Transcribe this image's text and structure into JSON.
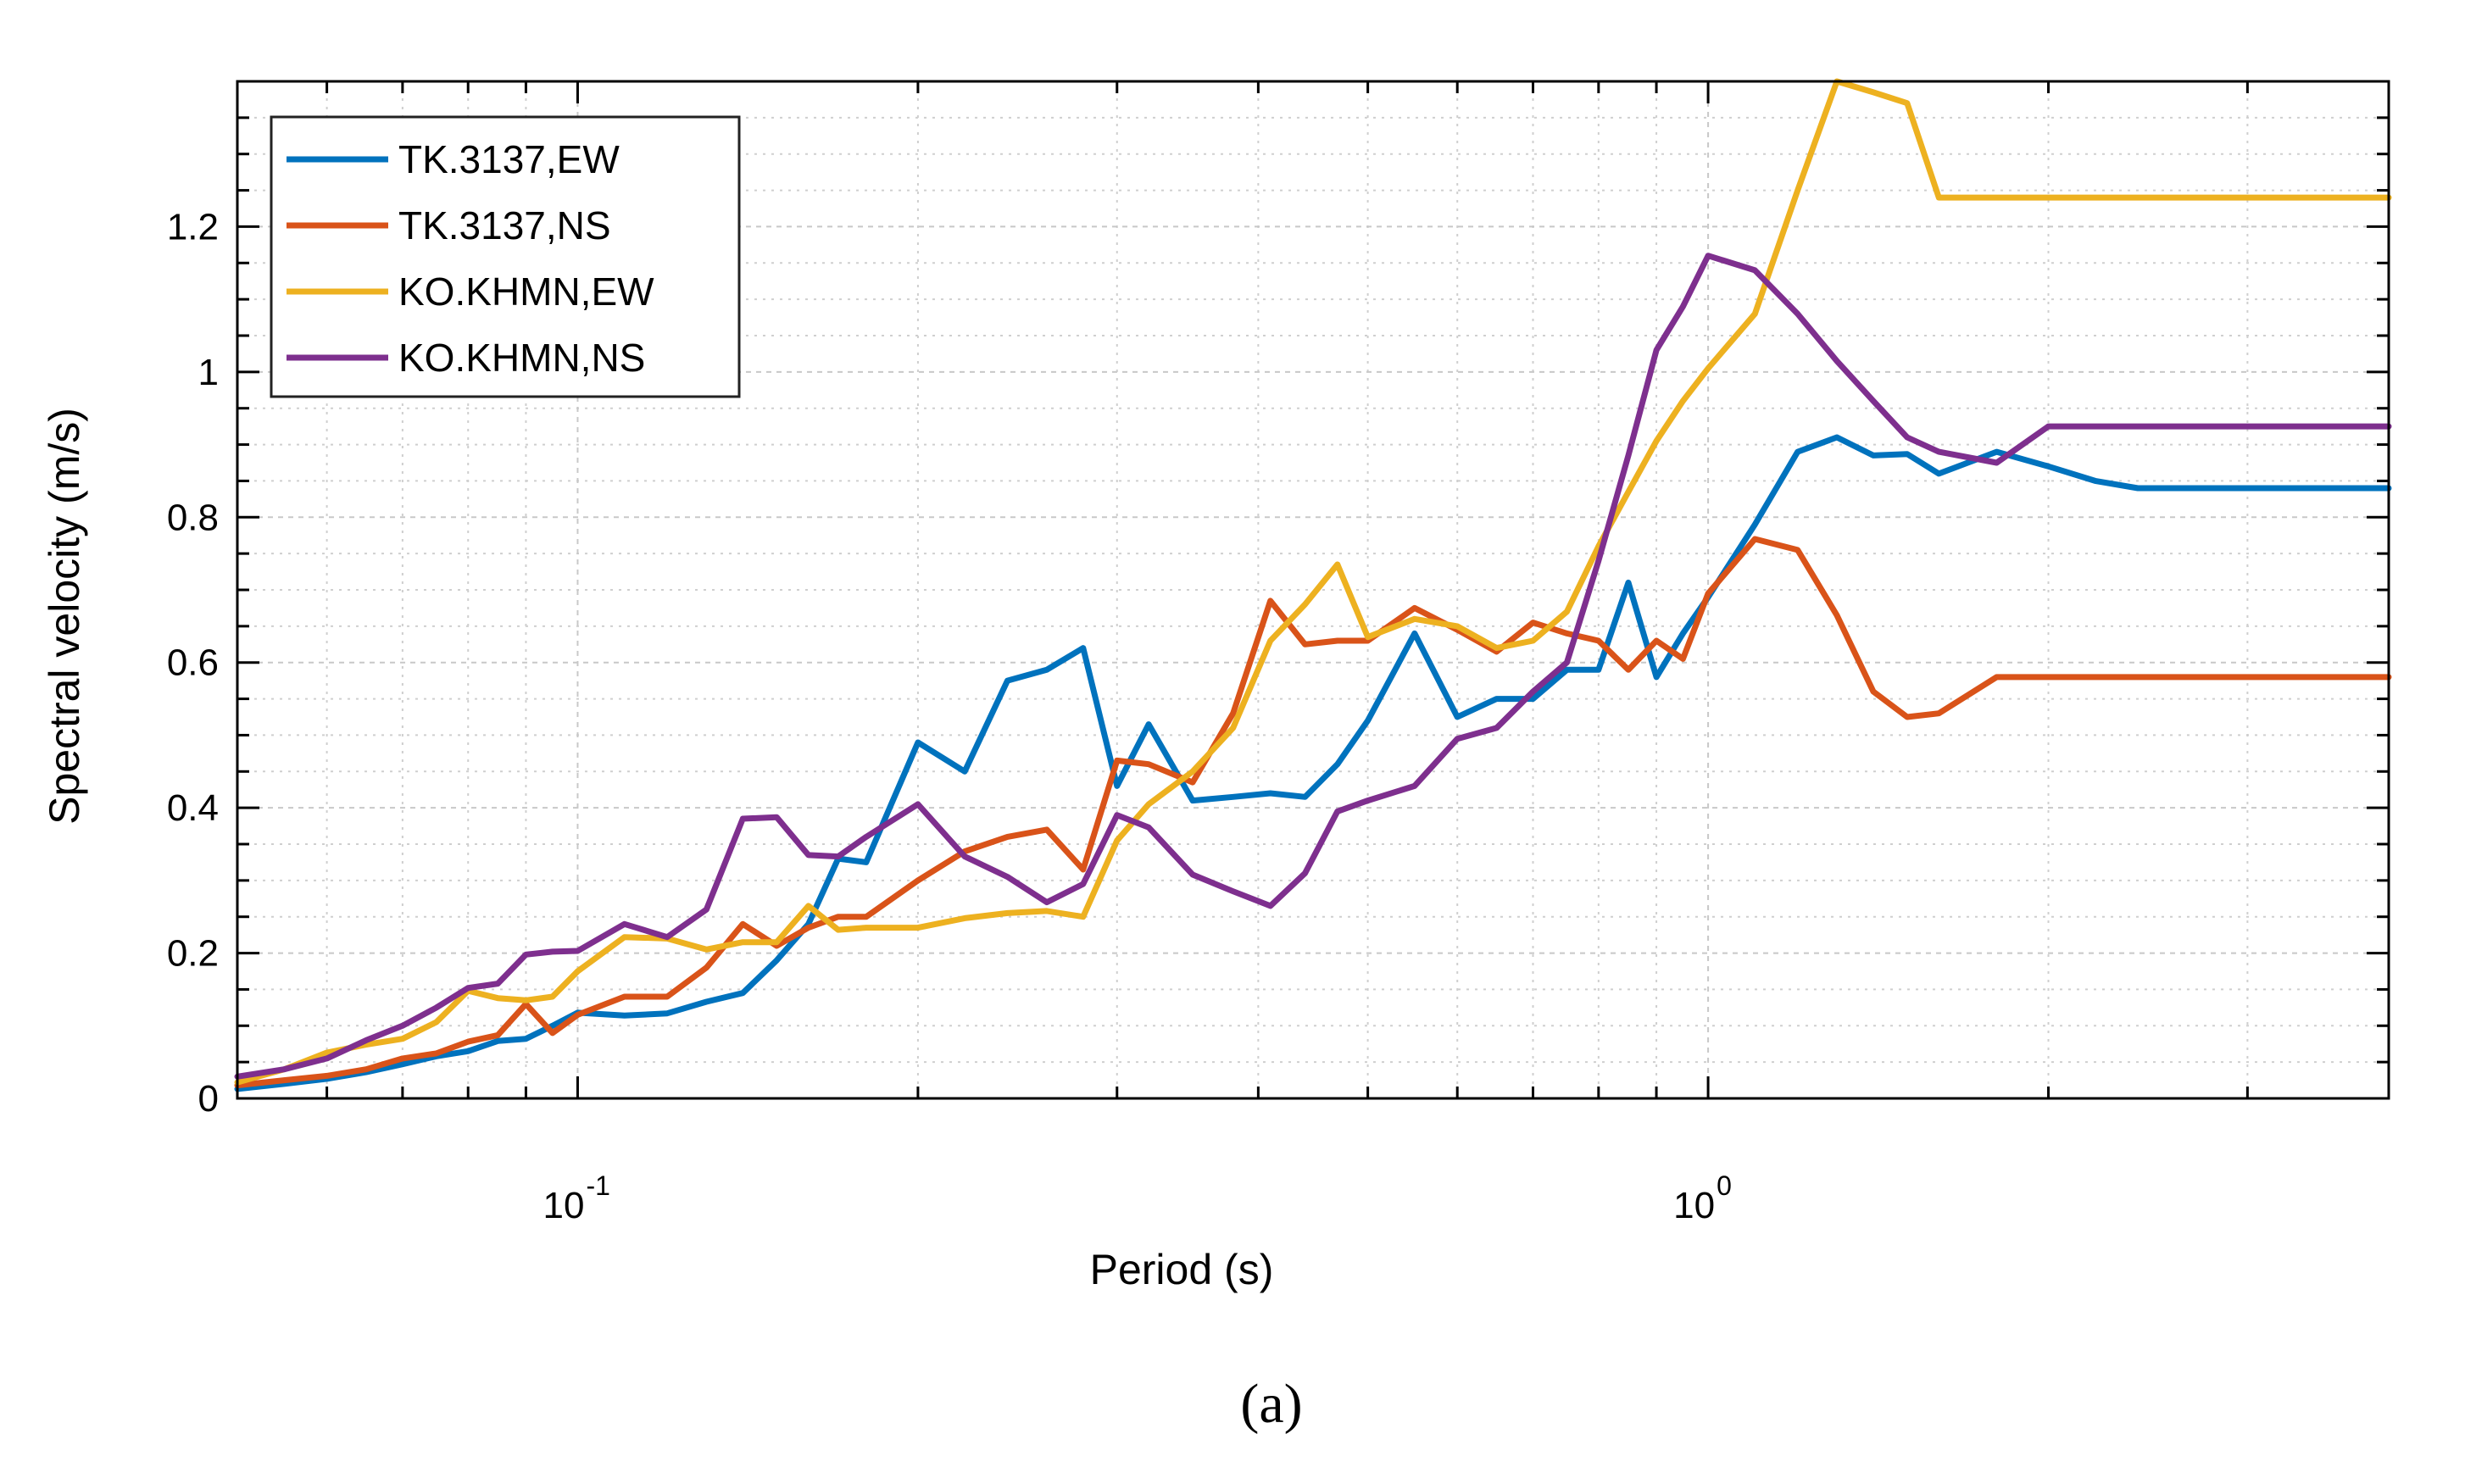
{
  "chart_data": {
    "type": "line",
    "title": "",
    "xlabel": "Period (s)",
    "ylabel": "Spectral velocity (m/s)",
    "xscale": "log",
    "xlim": [
      0.05,
      4.0
    ],
    "ylim": [
      0,
      1.4
    ],
    "grid": true,
    "legend_position": "top-left",
    "xticks": [
      0.1,
      1.0
    ],
    "xtick_labels": [
      "10",
      "10"
    ],
    "xtick_exponents": [
      "-1",
      "0"
    ],
    "yticks": [
      0,
      0.2,
      0.4,
      0.6,
      0.8,
      1,
      1.2
    ],
    "ytick_labels": [
      "0",
      "0.2",
      "0.4",
      "0.6",
      "0.8",
      "1",
      "1.2"
    ],
    "caption": "(a)",
    "series": [
      {
        "name": "TK.3137,EW",
        "color": "#0072BD",
        "x": [
          0.05,
          0.055,
          0.06,
          0.065,
          0.07,
          0.075,
          0.08,
          0.085,
          0.09,
          0.095,
          0.1,
          0.11,
          0.12,
          0.13,
          0.14,
          0.15,
          0.16,
          0.17,
          0.18,
          0.2,
          0.22,
          0.24,
          0.26,
          0.28,
          0.3,
          0.32,
          0.35,
          0.38,
          0.41,
          0.44,
          0.47,
          0.5,
          0.55,
          0.6,
          0.65,
          0.7,
          0.75,
          0.8,
          0.85,
          0.9,
          0.95,
          1.0,
          1.1,
          1.2,
          1.3,
          1.4,
          1.5,
          1.6,
          1.8,
          2.0,
          2.2,
          2.4,
          2.6,
          2.8,
          3.0,
          3.3,
          3.6,
          4.0
        ],
        "values": [
          0.013,
          0.02,
          0.027,
          0.036,
          0.047,
          0.058,
          0.065,
          0.079,
          0.082,
          0.1,
          0.118,
          0.114,
          0.117,
          0.133,
          0.145,
          0.19,
          0.24,
          0.33,
          0.325,
          0.49,
          0.45,
          0.575,
          0.59,
          0.62,
          0.43,
          0.515,
          0.41,
          0.415,
          0.42,
          0.415,
          0.46,
          0.52,
          0.64,
          0.525,
          0.55,
          0.55,
          0.59,
          0.59,
          0.71,
          0.58,
          0.64,
          0.69,
          0.79,
          0.89,
          0.91,
          0.885,
          0.887,
          0.86,
          0.89,
          0.87,
          0.85,
          0.84,
          0.84,
          0.84,
          0.84,
          0.84,
          0.84,
          0.84
        ]
      },
      {
        "name": "TK.3137,NS",
        "color": "#D95319",
        "x": [
          0.05,
          0.055,
          0.06,
          0.065,
          0.07,
          0.075,
          0.08,
          0.085,
          0.09,
          0.095,
          0.1,
          0.11,
          0.12,
          0.13,
          0.14,
          0.15,
          0.16,
          0.17,
          0.18,
          0.2,
          0.22,
          0.24,
          0.26,
          0.28,
          0.3,
          0.32,
          0.35,
          0.38,
          0.41,
          0.44,
          0.47,
          0.5,
          0.55,
          0.6,
          0.65,
          0.7,
          0.75,
          0.8,
          0.85,
          0.9,
          0.95,
          1.0,
          1.1,
          1.2,
          1.3,
          1.4,
          1.5,
          1.6,
          1.8,
          2.0,
          2.2,
          2.4,
          2.6,
          2.8,
          3.0,
          3.3,
          3.6,
          4.0
        ],
        "values": [
          0.018,
          0.025,
          0.031,
          0.04,
          0.055,
          0.062,
          0.078,
          0.087,
          0.13,
          0.09,
          0.115,
          0.14,
          0.14,
          0.18,
          0.24,
          0.21,
          0.235,
          0.25,
          0.25,
          0.3,
          0.34,
          0.36,
          0.37,
          0.315,
          0.465,
          0.46,
          0.435,
          0.53,
          0.685,
          0.625,
          0.63,
          0.63,
          0.675,
          0.645,
          0.615,
          0.655,
          0.64,
          0.63,
          0.59,
          0.63,
          0.605,
          0.695,
          0.77,
          0.755,
          0.665,
          0.56,
          0.525,
          0.53,
          0.58,
          0.58,
          0.58,
          0.58,
          0.58,
          0.58,
          0.58,
          0.58,
          0.58,
          0.58
        ]
      },
      {
        "name": "KO.KHMN,EW",
        "color": "#EDB120",
        "x": [
          0.05,
          0.055,
          0.06,
          0.065,
          0.07,
          0.075,
          0.08,
          0.085,
          0.09,
          0.095,
          0.1,
          0.11,
          0.12,
          0.13,
          0.14,
          0.15,
          0.16,
          0.17,
          0.18,
          0.2,
          0.22,
          0.24,
          0.26,
          0.28,
          0.3,
          0.32,
          0.35,
          0.38,
          0.41,
          0.44,
          0.47,
          0.5,
          0.55,
          0.6,
          0.65,
          0.7,
          0.75,
          0.8,
          0.85,
          0.9,
          0.95,
          1.0,
          1.1,
          1.2,
          1.3,
          1.4,
          1.5,
          1.6,
          1.8,
          2.0,
          2.2,
          2.4,
          2.6,
          2.8,
          3.0,
          3.3,
          3.6,
          4.0
        ],
        "values": [
          0.022,
          0.04,
          0.063,
          0.074,
          0.082,
          0.105,
          0.148,
          0.138,
          0.135,
          0.14,
          0.175,
          0.222,
          0.22,
          0.205,
          0.215,
          0.215,
          0.265,
          0.232,
          0.235,
          0.235,
          0.248,
          0.255,
          0.258,
          0.25,
          0.355,
          0.405,
          0.45,
          0.51,
          0.63,
          0.68,
          0.735,
          0.635,
          0.66,
          0.65,
          0.62,
          0.63,
          0.67,
          0.76,
          0.835,
          0.905,
          0.96,
          1.005,
          1.08,
          1.25,
          1.4,
          1.385,
          1.37,
          1.24,
          1.24,
          1.24,
          1.24,
          1.24,
          1.24,
          1.24,
          1.24,
          1.24,
          1.24,
          1.24
        ]
      },
      {
        "name": "KO.KHMN,NS",
        "color": "#7E2F8E",
        "x": [
          0.05,
          0.055,
          0.06,
          0.065,
          0.07,
          0.075,
          0.08,
          0.085,
          0.09,
          0.095,
          0.1,
          0.11,
          0.12,
          0.13,
          0.14,
          0.15,
          0.16,
          0.17,
          0.18,
          0.2,
          0.22,
          0.24,
          0.26,
          0.28,
          0.3,
          0.32,
          0.35,
          0.38,
          0.41,
          0.44,
          0.47,
          0.5,
          0.55,
          0.6,
          0.65,
          0.7,
          0.75,
          0.8,
          0.85,
          0.9,
          0.95,
          1.0,
          1.1,
          1.2,
          1.3,
          1.4,
          1.5,
          1.6,
          1.8,
          2.0,
          2.2,
          2.4,
          2.6,
          2.8,
          3.0,
          3.3,
          3.6,
          4.0
        ],
        "values": [
          0.03,
          0.04,
          0.055,
          0.08,
          0.1,
          0.125,
          0.152,
          0.158,
          0.198,
          0.202,
          0.203,
          0.24,
          0.222,
          0.26,
          0.385,
          0.387,
          0.335,
          0.333,
          0.36,
          0.405,
          0.333,
          0.305,
          0.27,
          0.295,
          0.39,
          0.373,
          0.308,
          0.285,
          0.265,
          0.31,
          0.395,
          0.41,
          0.43,
          0.495,
          0.51,
          0.56,
          0.6,
          0.74,
          0.885,
          1.03,
          1.09,
          1.16,
          1.14,
          1.08,
          1.015,
          0.96,
          0.91,
          0.89,
          0.875,
          0.925,
          0.925,
          0.925,
          0.925,
          0.925,
          0.925,
          0.925,
          0.925,
          0.925
        ]
      }
    ]
  }
}
